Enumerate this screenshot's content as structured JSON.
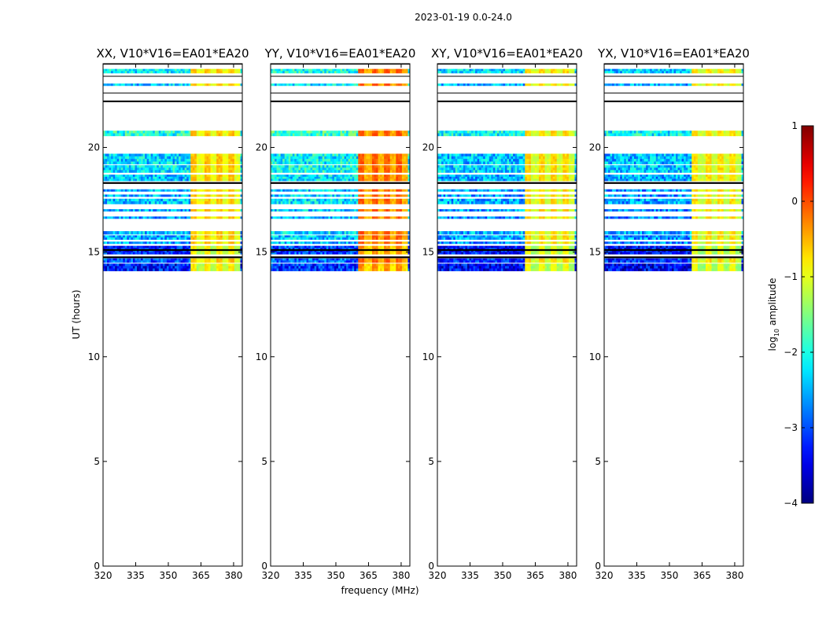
{
  "chart_data": {
    "type": "heatmap",
    "suptitle": "2023-01-19 0.0-24.0",
    "xlabel": "frequency (MHz)",
    "ylabel": "UT (hours)",
    "xlim": [
      320,
      384
    ],
    "ylim": [
      0,
      24
    ],
    "xticks": [
      320,
      335,
      350,
      365,
      380
    ],
    "yticks": [
      0,
      5,
      10,
      15,
      20
    ],
    "colorbar": {
      "label_prefix": "log",
      "label_sub": "10",
      "label_suffix": " amplitude",
      "range": [
        -4,
        1
      ],
      "ticks": [
        1,
        0,
        -1,
        -2,
        -3,
        -4
      ],
      "tick_labels": [
        "1",
        "0",
        "−1",
        "−2",
        "−3",
        "−4"
      ],
      "colormap": "jet"
    },
    "rfi_band_mhz": [
      360.5,
      383.5
    ],
    "data_bands": [
      {
        "y0": 23.55,
        "y1": 23.75,
        "base": -2.2
      },
      {
        "y0": 22.95,
        "y1": 23.05,
        "base": -2.4
      },
      {
        "y0": 20.55,
        "y1": 20.8,
        "base": -2.0
      },
      {
        "y0": 19.2,
        "y1": 19.7,
        "base": -2.3
      },
      {
        "y0": 18.8,
        "y1": 19.15,
        "base": -2.2
      },
      {
        "y0": 18.4,
        "y1": 18.7,
        "base": -2.4
      },
      {
        "y0": 17.9,
        "y1": 18.0,
        "base": -2.5
      },
      {
        "y0": 17.65,
        "y1": 17.75,
        "base": -2.5
      },
      {
        "y0": 17.3,
        "y1": 17.55,
        "base": -2.4
      },
      {
        "y0": 16.95,
        "y1": 17.05,
        "base": -2.5
      },
      {
        "y0": 16.6,
        "y1": 16.7,
        "base": -2.6
      },
      {
        "y0": 15.85,
        "y1": 16.0,
        "base": -2.4
      },
      {
        "y0": 15.6,
        "y1": 15.8,
        "base": -2.5
      },
      {
        "y0": 15.4,
        "y1": 15.5,
        "base": -2.6
      },
      {
        "y0": 14.9,
        "y1": 15.3,
        "base": -3.2
      },
      {
        "y0": 14.5,
        "y1": 14.7,
        "base": -3.0
      },
      {
        "y0": 14.1,
        "y1": 14.45,
        "base": -3.3
      }
    ],
    "flagged_lines": [
      24.0,
      22.2,
      18.3,
      15.1,
      14.75
    ],
    "panels": [
      {
        "title": "XX, V10*V16=EA01*EA20",
        "offset": 0.0
      },
      {
        "title": "YY, V10*V16=EA01*EA20",
        "offset": 0.15
      },
      {
        "title": "XY, V10*V16=EA01*EA20",
        "offset": -0.1
      },
      {
        "title": "YX, V10*V16=EA01*EA20",
        "offset": -0.15
      }
    ]
  }
}
